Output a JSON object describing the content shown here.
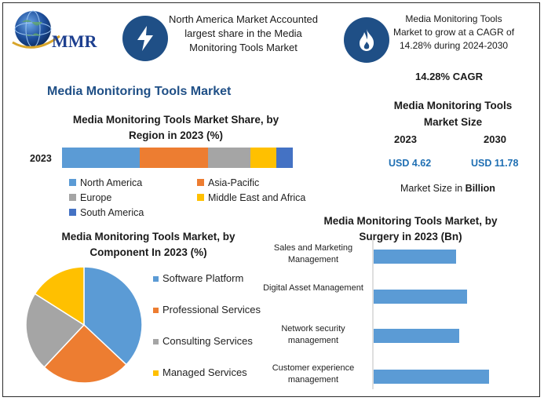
{
  "brand": {
    "name": "MMR"
  },
  "header": {
    "card1": "North America Market Accounted largest share in the Media Monitoring Tools Market",
    "card2": "Media Monitoring Tools Market to grow at a CAGR of 14.28% during 2024-2030"
  },
  "main_title": "Media Monitoring Tools Market",
  "cagr_text": "14.28% CAGR",
  "market_size": {
    "title": "Media Monitoring Tools Market Size",
    "year1": "2023",
    "year2": "2030",
    "value1": "USD 4.62",
    "value2": "USD 11.78",
    "note_prefix": "Market Size in ",
    "note_unit": "Billion"
  },
  "colors": {
    "accent_blue": "#1f4f86",
    "value_blue": "#1f6fb3",
    "series": [
      "#5b9bd5",
      "#ed7d31",
      "#a5a5a5",
      "#ffc000",
      "#4472c4"
    ]
  },
  "icons": {
    "brand": "globe-icon",
    "card1": "lightning-icon",
    "card2": "flame-icon"
  },
  "chart_data": [
    {
      "type": "bar",
      "orientation": "horizontal-stacked",
      "title": "Media Monitoring Tools Market Share, by Region in 2023 (%)",
      "categories": [
        "2023"
      ],
      "series": [
        {
          "name": "North America",
          "values": [
            33
          ]
        },
        {
          "name": "Asia-Pacific",
          "values": [
            29
          ]
        },
        {
          "name": "Europe",
          "values": [
            18
          ]
        },
        {
          "name": "Middle East and Africa",
          "values": [
            11
          ]
        },
        {
          "name": "South America",
          "values": [
            7
          ]
        }
      ],
      "legend": "bottom"
    },
    {
      "type": "pie",
      "title": "Media Monitoring Tools Market, by Component In 2023 (%)",
      "labels": [
        "Software Platform",
        "Professional Services",
        "Consulting Services",
        "Managed Services"
      ],
      "values": [
        37,
        25,
        22,
        16
      ],
      "legend": "right"
    },
    {
      "type": "bar",
      "orientation": "horizontal",
      "title": "Media Monitoring Tools Market, by Surgery in 2023 (Bn)",
      "categories": [
        "Sales and Marketing Management",
        "Digital Asset Management",
        "Network security management",
        "Customer experience management"
      ],
      "values": [
        1.05,
        1.19,
        1.09,
        1.47
      ],
      "xlim": [
        0,
        2
      ]
    }
  ]
}
